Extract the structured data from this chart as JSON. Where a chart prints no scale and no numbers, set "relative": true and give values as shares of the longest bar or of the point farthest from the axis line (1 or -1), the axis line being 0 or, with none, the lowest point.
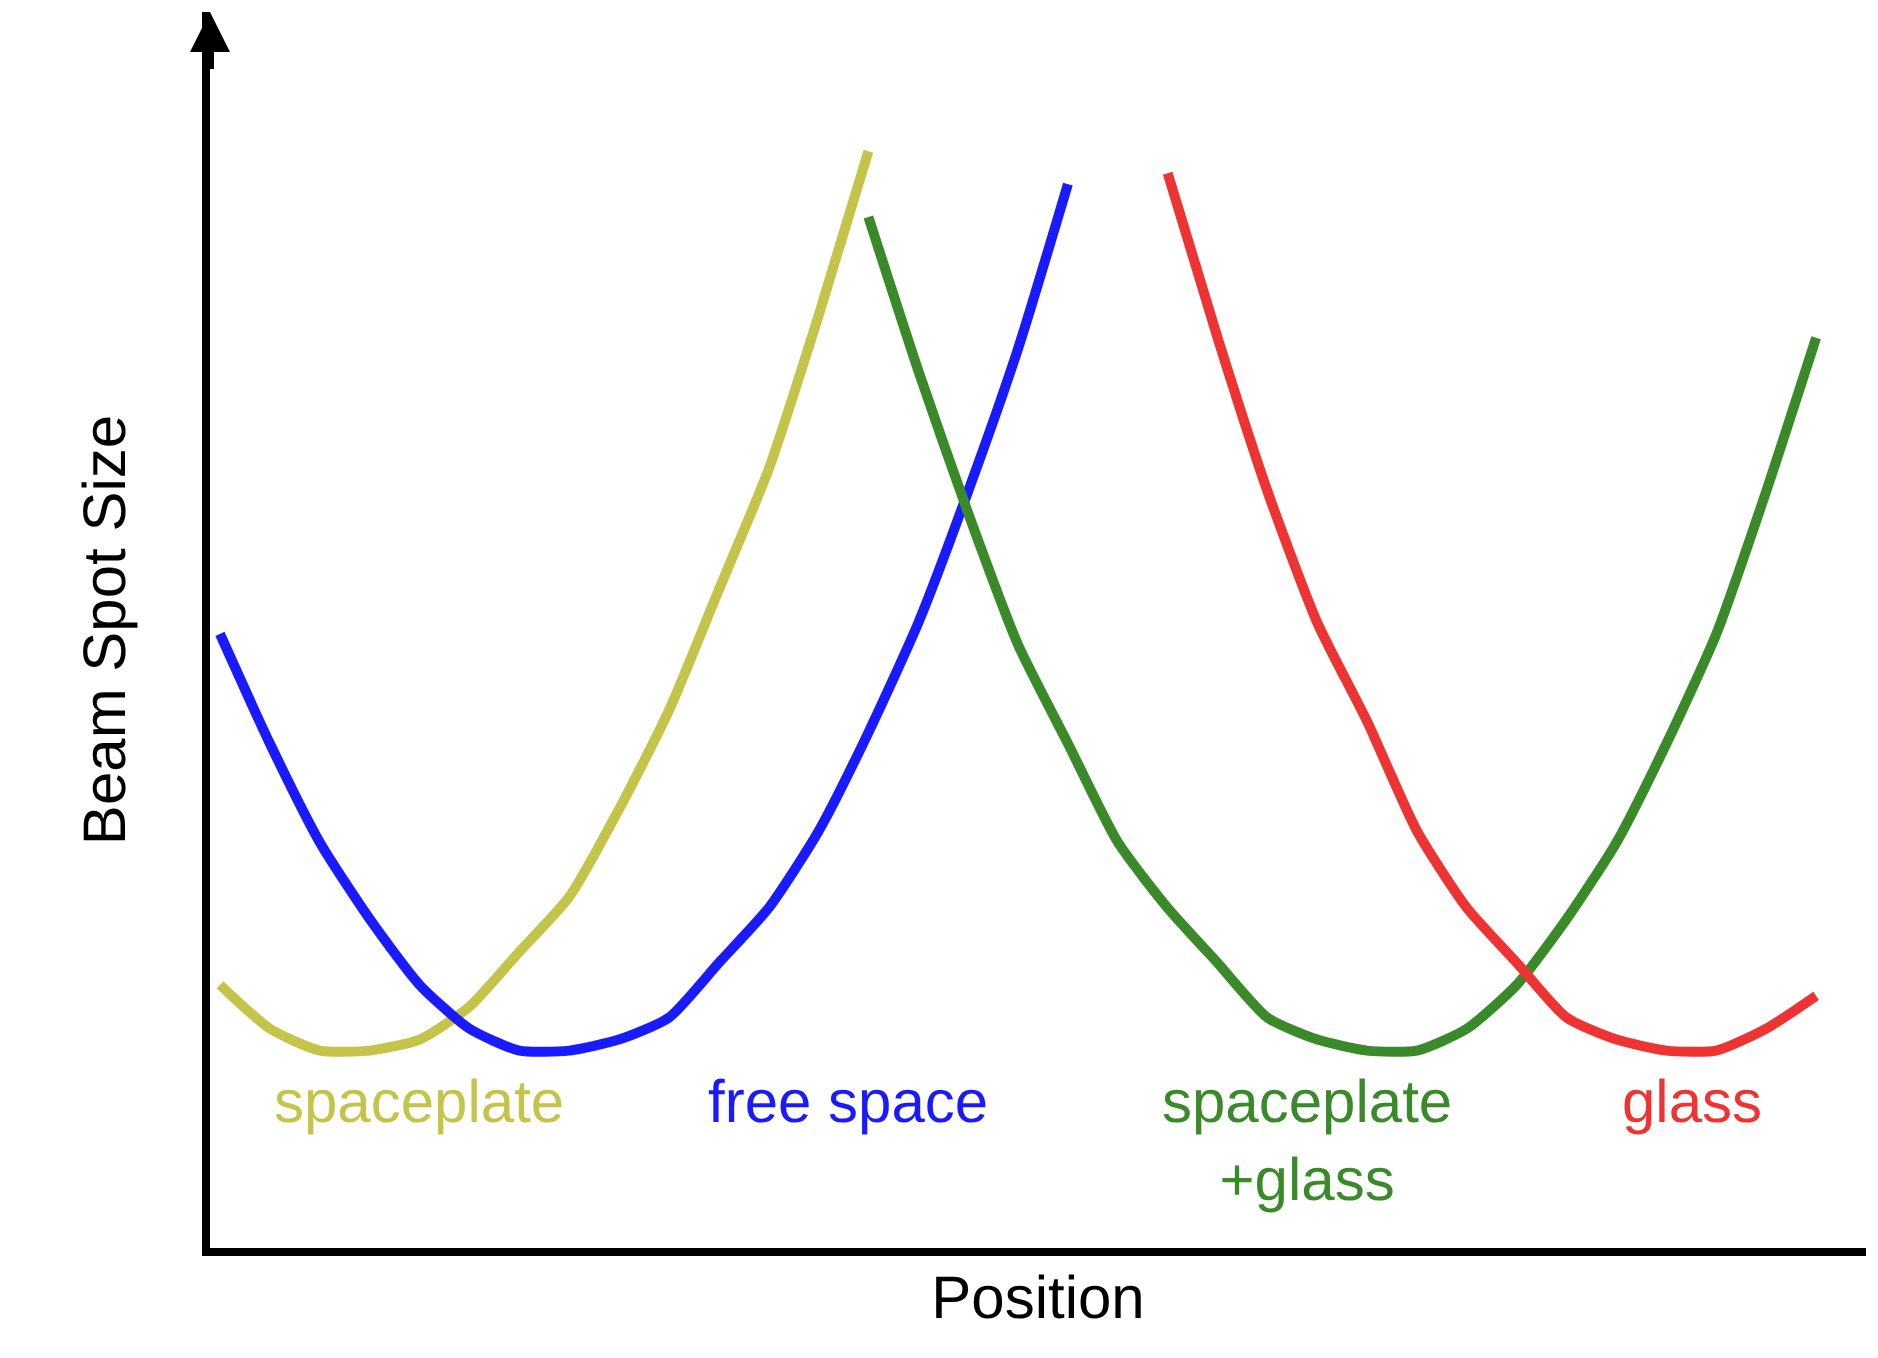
{
  "chart_data": {
    "type": "line",
    "relative": true,
    "xlabel": "Position",
    "ylabel": "Beam Spot Size",
    "legend": false,
    "marker": "none",
    "line_style": "solid",
    "categories": [
      null,
      null,
      null,
      null,
      null,
      null,
      null,
      null,
      null,
      null,
      null,
      null,
      null,
      null,
      null,
      null,
      null,
      null,
      null,
      null,
      null,
      null,
      null,
      null,
      null,
      null,
      null,
      null,
      null,
      null,
      null,
      null,
      null
    ],
    "series": [
      {
        "name": "spaceplate",
        "color": "#c4c44a",
        "values": [
          0.24,
          0.2,
          0.18,
          0.18,
          0.19,
          0.22,
          0.27,
          0.32,
          0.4,
          0.49,
          0.6,
          0.71,
          0.85,
          1.0,
          null,
          null,
          null,
          null,
          null,
          null,
          null,
          null,
          null,
          null,
          null,
          null,
          null,
          null,
          null,
          null,
          null,
          null,
          null
        ]
      },
      {
        "name": "free space",
        "color": "#1a1aff",
        "values": [
          0.56,
          0.46,
          0.37,
          0.3,
          0.24,
          0.2,
          0.18,
          0.18,
          0.19,
          0.21,
          0.26,
          0.31,
          0.38,
          0.47,
          0.57,
          0.69,
          0.82,
          0.97,
          null,
          null,
          null,
          null,
          null,
          null,
          null,
          null,
          null,
          null,
          null,
          null,
          null,
          null,
          null
        ]
      },
      {
        "name": "spaceplate\n+glass",
        "color": "#3a8a2a",
        "values": [
          null,
          null,
          null,
          null,
          null,
          null,
          null,
          null,
          null,
          null,
          null,
          null,
          null,
          0.94,
          0.8,
          0.67,
          0.55,
          0.46,
          0.37,
          0.31,
          0.26,
          0.21,
          0.19,
          0.18,
          0.18,
          0.2,
          0.24,
          0.3,
          0.37,
          0.46,
          0.56,
          0.69,
          0.83
        ]
      },
      {
        "name": "glass",
        "color": "#ee3333",
        "values": [
          null,
          null,
          null,
          null,
          null,
          null,
          null,
          null,
          null,
          null,
          null,
          null,
          null,
          null,
          null,
          null,
          null,
          null,
          null,
          0.98,
          0.83,
          0.69,
          0.57,
          0.48,
          0.38,
          0.31,
          0.26,
          0.21,
          0.19,
          0.18,
          0.18,
          0.2,
          0.23
        ]
      }
    ]
  }
}
